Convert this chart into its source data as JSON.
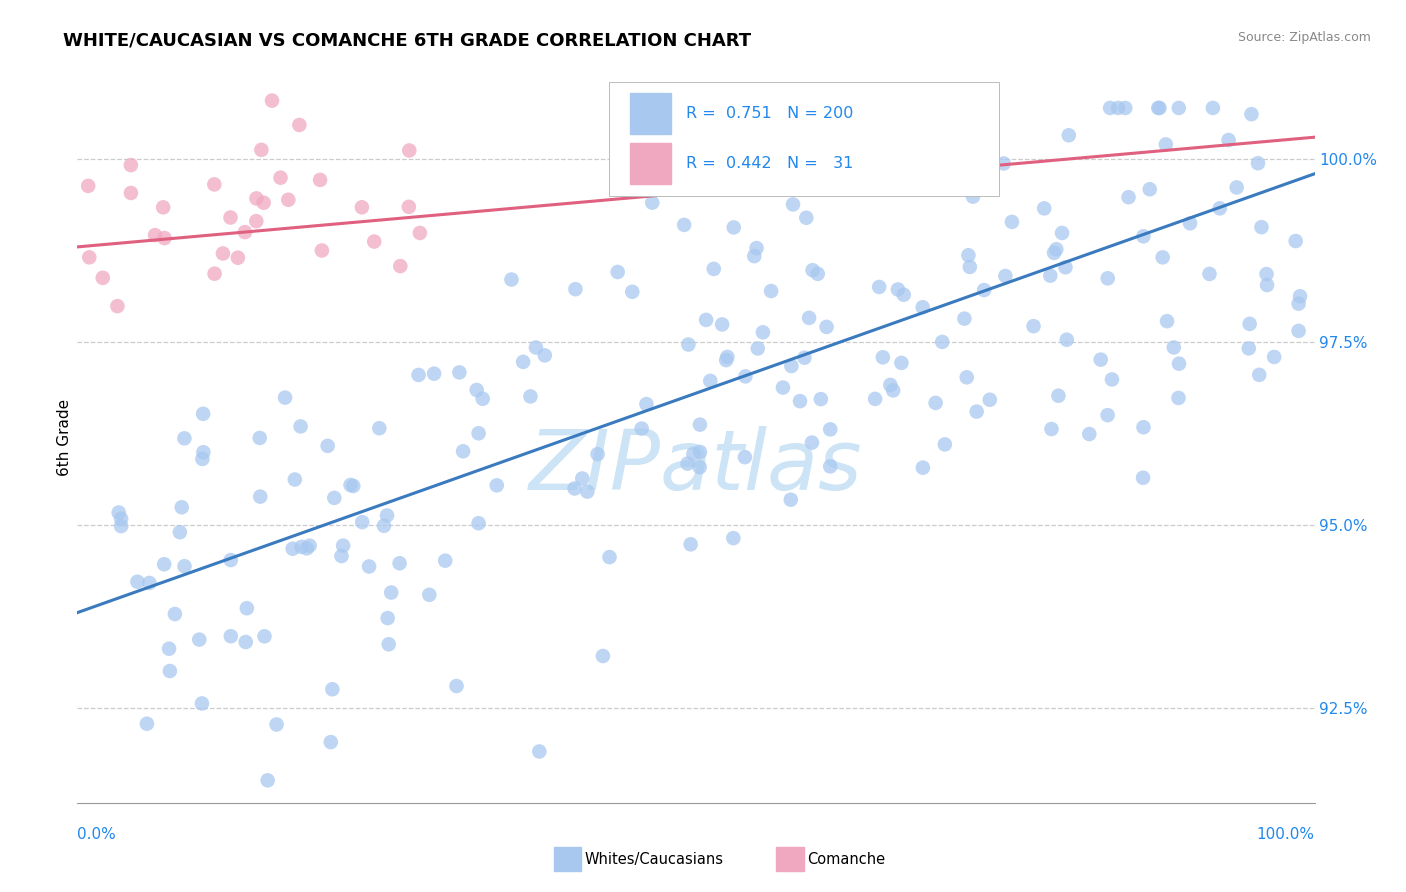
{
  "title": "WHITE/CAUCASIAN VS COMANCHE 6TH GRADE CORRELATION CHART",
  "source_text": "Source: ZipAtlas.com",
  "ylabel": "6th Grade",
  "yticks": [
    92.5,
    95.0,
    97.5,
    100.0
  ],
  "ytick_labels": [
    "92.5%",
    "95.0%",
    "97.5%",
    "100.0%"
  ],
  "xmin": 0.0,
  "xmax": 100.0,
  "ymin": 91.2,
  "ymax": 101.2,
  "blue_R": 0.751,
  "blue_N": 200,
  "pink_R": 0.442,
  "pink_N": 31,
  "blue_color": "#a8c8f0",
  "pink_color": "#f0a8c0",
  "blue_line_color": "#3a7abf",
  "pink_line_color": "#e06080",
  "legend_R_color": "#2288ee",
  "watermark_color": "#cce4f5",
  "background_color": "#ffffff",
  "title_fontsize": 13,
  "axis_label_fontsize": 11,
  "tick_fontsize": 11,
  "blue_line_x0": 0.0,
  "blue_line_x1": 100.0,
  "blue_line_y0": 93.8,
  "blue_line_y1": 99.8,
  "pink_line_x0": 0.0,
  "pink_line_x1": 100.0,
  "pink_line_y0": 98.8,
  "pink_line_y1": 100.3
}
